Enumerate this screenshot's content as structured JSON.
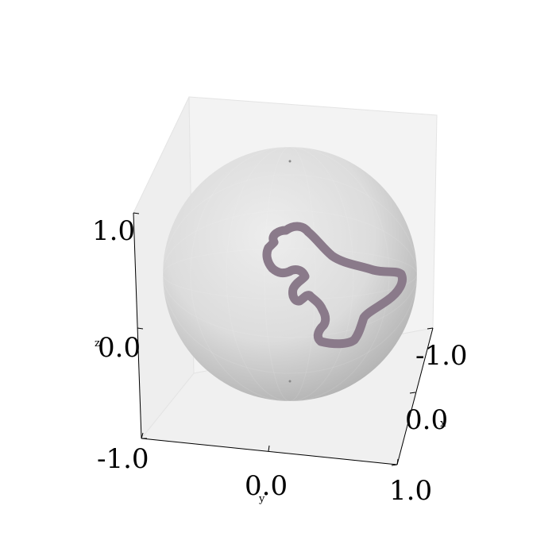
{
  "chart_data": {
    "type": "3d-surface",
    "title": "",
    "surface": "unit sphere",
    "surface_color": "#d6d6d6",
    "curve_color": "#8a7a8a",
    "axes": {
      "x": {
        "label": "x",
        "ticks": [
          "-1.0",
          "0.0",
          "1.0"
        ],
        "range": [
          -1.0,
          1.0
        ]
      },
      "y": {
        "label": "y",
        "ticks": [
          "-1.0",
          "0.0",
          "1.0"
        ],
        "range": [
          -1.0,
          1.0
        ]
      },
      "z": {
        "label": "z",
        "ticks": [
          "-1.0",
          "0.0",
          "1.0"
        ],
        "range": [
          -1.0,
          1.0
        ]
      }
    },
    "grid": false,
    "pane_color": "#f2f2f2",
    "curve_shape": "dinosaur-outline"
  }
}
